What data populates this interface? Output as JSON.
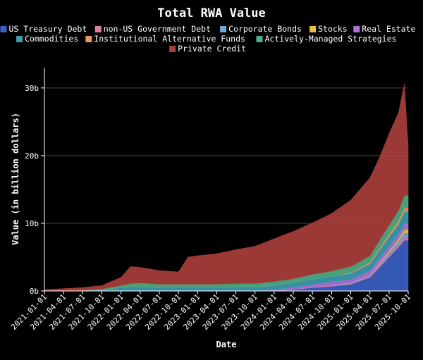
{
  "chart_data": {
    "type": "area",
    "stacked": true,
    "title": "Total RWA Value",
    "xlabel": "Date",
    "ylabel": "Value (in billion dollars)",
    "ylim": [
      0,
      33
    ],
    "yticks": [
      0,
      10,
      20,
      30
    ],
    "ytick_labels": [
      "0b",
      "10b",
      "20b",
      "30b"
    ],
    "xtick_labels": [
      "2021-01-01",
      "2021-04-01",
      "2021-07-01",
      "2021-10-01",
      "2022-01-01",
      "2022-04-01",
      "2022-07-01",
      "2022-10-01",
      "2023-01-01",
      "2023-04-01",
      "2023-07-01",
      "2023-10-01",
      "2024-01-01",
      "2024-04-01",
      "2024-07-01",
      "2024-10-01",
      "2025-01-01",
      "2025-04-01",
      "2025-07-01",
      "2025-10-01"
    ],
    "grid": "horizontal",
    "legend_position": "top",
    "x": [
      0,
      1,
      2,
      3,
      4,
      4.5,
      5,
      6,
      7,
      7.5,
      8,
      9,
      10,
      11,
      12,
      13,
      14,
      15,
      16,
      17,
      17.5,
      18,
      18.5,
      18.8,
      19
    ],
    "series": [
      {
        "name": "US Treasury Debt",
        "color": "#3b5fc4",
        "values": [
          0,
          0,
          0,
          0,
          0,
          0,
          0,
          0,
          0,
          0,
          0,
          0,
          0,
          0,
          0,
          0.2,
          0.5,
          0.7,
          1.0,
          2.0,
          3.5,
          5.0,
          6.5,
          7.5,
          7.5
        ]
      },
      {
        "name": "non-US Government Debt",
        "color": "#e07b9a",
        "values": [
          0,
          0,
          0,
          0,
          0,
          0,
          0,
          0,
          0,
          0,
          0,
          0,
          0,
          0,
          0,
          0,
          0.05,
          0.1,
          0.1,
          0.2,
          0.3,
          0.3,
          0.4,
          0.5,
          0.5
        ]
      },
      {
        "name": "Corporate Bonds",
        "color": "#6fa8dc",
        "values": [
          0,
          0,
          0,
          0,
          0,
          0,
          0,
          0,
          0,
          0,
          0,
          0,
          0,
          0,
          0,
          0,
          0,
          0.05,
          0.1,
          0.2,
          0.3,
          0.4,
          0.5,
          0.6,
          0.6
        ]
      },
      {
        "name": "Stocks",
        "color": "#e8c23c",
        "values": [
          0,
          0,
          0,
          0,
          0,
          0,
          0,
          0,
          0,
          0,
          0,
          0,
          0,
          0,
          0,
          0,
          0,
          0,
          0,
          0,
          0.1,
          0.2,
          0.3,
          0.5,
          0.5
        ]
      },
      {
        "name": "Real Estate",
        "color": "#b072d8",
        "values": [
          0,
          0,
          0,
          0,
          0,
          0,
          0,
          0,
          0,
          0,
          0,
          0,
          0,
          0,
          0.2,
          0.3,
          0.4,
          0.5,
          0.5,
          0.6,
          0.6,
          0.7,
          0.7,
          0.8,
          0.8
        ]
      },
      {
        "name": "Commodities",
        "color": "#3b9cb2",
        "values": [
          0,
          0.05,
          0.1,
          0.2,
          0.5,
          0.6,
          0.6,
          0.5,
          0.5,
          0.5,
          0.5,
          0.5,
          0.6,
          0.6,
          0.6,
          0.7,
          0.8,
          0.8,
          0.9,
          1.0,
          1.2,
          1.4,
          1.5,
          1.8,
          1.8
        ]
      },
      {
        "name": "Institutional Alternative Funds",
        "color": "#e8955e",
        "values": [
          0,
          0,
          0,
          0,
          0,
          0,
          0,
          0,
          0,
          0,
          0,
          0,
          0,
          0,
          0,
          0,
          0,
          0,
          0.1,
          0.2,
          0.3,
          0.4,
          0.5,
          0.6,
          0.6
        ]
      },
      {
        "name": "Actively-Managed Strategies",
        "color": "#4fae82",
        "values": [
          0,
          0,
          0,
          0.1,
          0.3,
          0.5,
          0.6,
          0.5,
          0.5,
          0.5,
          0.5,
          0.5,
          0.5,
          0.5,
          0.6,
          0.6,
          0.7,
          0.8,
          0.9,
          1.0,
          1.2,
          1.3,
          1.5,
          1.8,
          1.8
        ]
      },
      {
        "name": "Private Credit",
        "color": "#a83e3b",
        "values": [
          0.2,
          0.3,
          0.4,
          0.5,
          1.2,
          2.5,
          2.3,
          2.0,
          1.8,
          4.0,
          4.2,
          4.5,
          5.0,
          5.5,
          6.3,
          7.0,
          7.6,
          8.5,
          9.8,
          11.5,
          12.2,
          13.5,
          14.5,
          16.5,
          7.2
        ]
      }
    ]
  }
}
